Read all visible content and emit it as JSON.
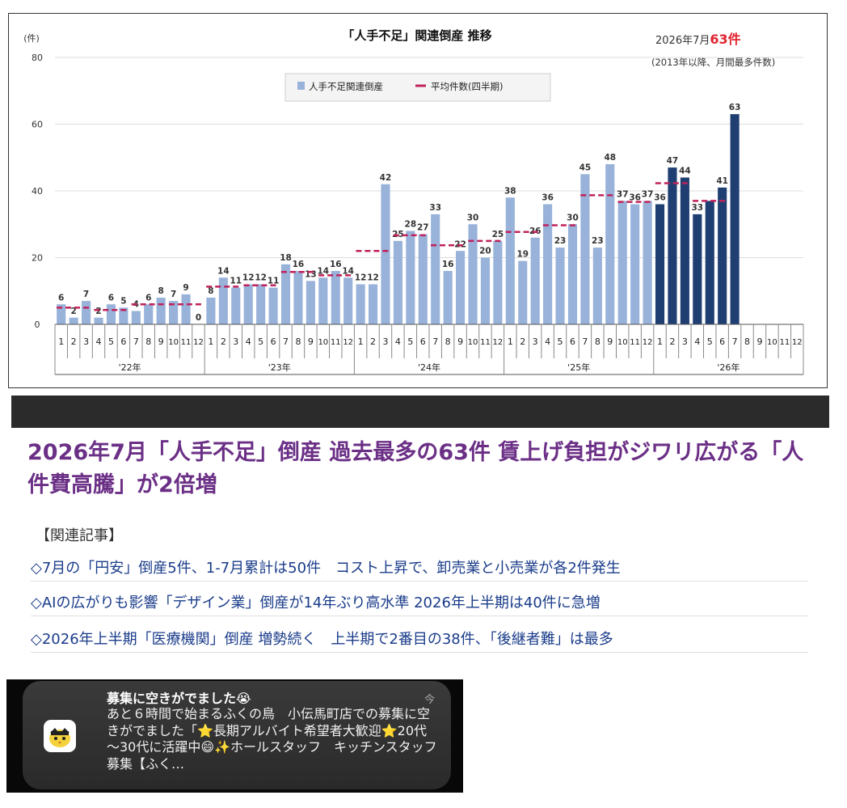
{
  "chart_data": {
    "type": "bar",
    "title": "「人手不足」関連倒産 推移",
    "y_unit": "(件)",
    "ylim": [
      0,
      80
    ],
    "y_ticks": [
      0,
      20,
      40,
      60,
      80
    ],
    "grid": true,
    "legend_position": "top-center",
    "annotation_prefix": "2026年7月",
    "annotation_value": "63件",
    "annotation_note": "(2013年以降、月間最多件数)",
    "colors": {
      "bar": "#98b2da",
      "bar_highlight": "#1f3f72",
      "avg": "#c0225b",
      "accent": "#e0242f"
    },
    "series": [
      {
        "name": "人手不足関連倒産",
        "values": [
          6,
          2,
          7,
          2,
          6,
          5,
          4,
          6,
          8,
          7,
          9,
          0,
          8,
          14,
          11,
          12,
          12,
          11,
          18,
          16,
          13,
          14,
          16,
          14,
          12,
          12,
          42,
          25,
          28,
          27,
          33,
          16,
          22,
          30,
          20,
          25,
          38,
          19,
          26,
          36,
          23,
          30,
          45,
          23,
          48,
          37,
          36,
          37,
          36,
          47,
          44,
          33,
          37,
          41,
          63,
          null,
          null,
          null,
          null,
          null
        ],
        "value_labels": [
          "6",
          "2",
          "7",
          "2",
          "6",
          "5",
          "4",
          "6",
          "8",
          "7",
          "9",
          "0",
          "8",
          "14",
          "11",
          "12",
          "12",
          "11",
          "18",
          "16",
          "13",
          "14",
          "16",
          "14",
          "12",
          "12",
          "42",
          "25",
          "28",
          "27",
          "33",
          "16",
          "22",
          "30",
          "20",
          "25",
          "38",
          "19",
          "26",
          "36",
          "23",
          "30",
          "45",
          "23",
          "48",
          "37",
          "36",
          "37",
          "36",
          "47",
          "44",
          "33",
          "",
          "41",
          "63",
          "",
          "",
          "",
          "",
          ""
        ]
      },
      {
        "name": "平均件数(四半期)",
        "quarter_values": [
          5.0,
          4.3,
          6.0,
          6.0,
          11.3,
          11.7,
          15.7,
          14.7,
          22.0,
          26.7,
          23.7,
          25.0,
          27.7,
          29.7,
          38.7,
          36.7,
          42.3,
          37.0
        ]
      }
    ],
    "x_month_labels": [
      "1",
      "2",
      "3",
      "4",
      "5",
      "6",
      "7",
      "8",
      "9",
      "10",
      "11",
      "12"
    ],
    "x_year_labels": [
      "'22年",
      "'23年",
      "'24年",
      "'25年",
      "'26年"
    ],
    "highlight_from_index": 48
  },
  "article": {
    "headline": "2026年7月「人手不足」倒産 過去最多の63件 賃上げ負担がジワリ広がる「人件費高騰」が2倍増",
    "related_label": "【関連記事】",
    "related_items": [
      "◇7月の「円安」倒産5件、1-7月累計は50件　コスト上昇で、卸売業と小売業が各2件発生",
      "◇AIの広がりも影響「デザイン業」倒産が14年ぶり高水準 2026年上半期は40件に急増",
      "◇2026年上半期「医療機関」倒産 増勢続く　上半期で2番目の38件、「後継者難」は最多"
    ]
  },
  "notification": {
    "title": "募集に空きがでました😭",
    "time": "今",
    "body": "あと６時間で始まるふくの鳥　小伝馬町店での募集に空きがでました「⭐長期アルバイト希望者大歓迎⭐20代～30代に活躍中😄✨ホールスタッフ　キッチンスタッフ募集【ふく…",
    "avatar_icon": "bird-mascot-icon"
  }
}
